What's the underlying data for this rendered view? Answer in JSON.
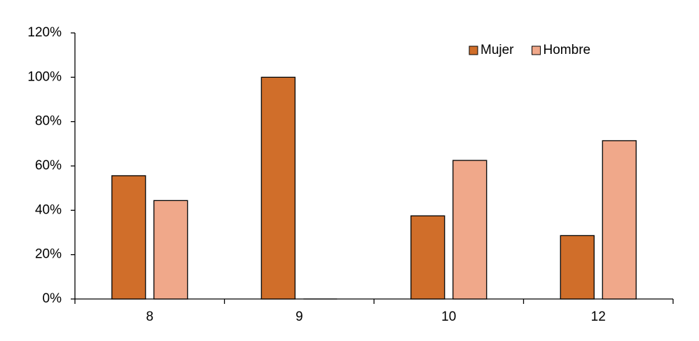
{
  "chart_data": {
    "type": "bar",
    "categories": [
      "8",
      "9",
      "10",
      "12"
    ],
    "series": [
      {
        "name": "Mujer",
        "color": "#d06e2a",
        "values": [
          55.6,
          100,
          37.5,
          28.6
        ]
      },
      {
        "name": "Hombre",
        "color": "#f0a88a",
        "values": [
          44.4,
          0,
          62.5,
          71.4
        ]
      }
    ],
    "ylim": [
      0,
      120
    ],
    "yticks": [
      {
        "value": 0,
        "label": "0%"
      },
      {
        "value": 20,
        "label": "20%"
      },
      {
        "value": 40,
        "label": "40%"
      },
      {
        "value": 60,
        "label": "60%"
      },
      {
        "value": 80,
        "label": "80%"
      },
      {
        "value": 100,
        "label": "100%"
      },
      {
        "value": 120,
        "label": "120%"
      }
    ],
    "legend": "top-right"
  }
}
